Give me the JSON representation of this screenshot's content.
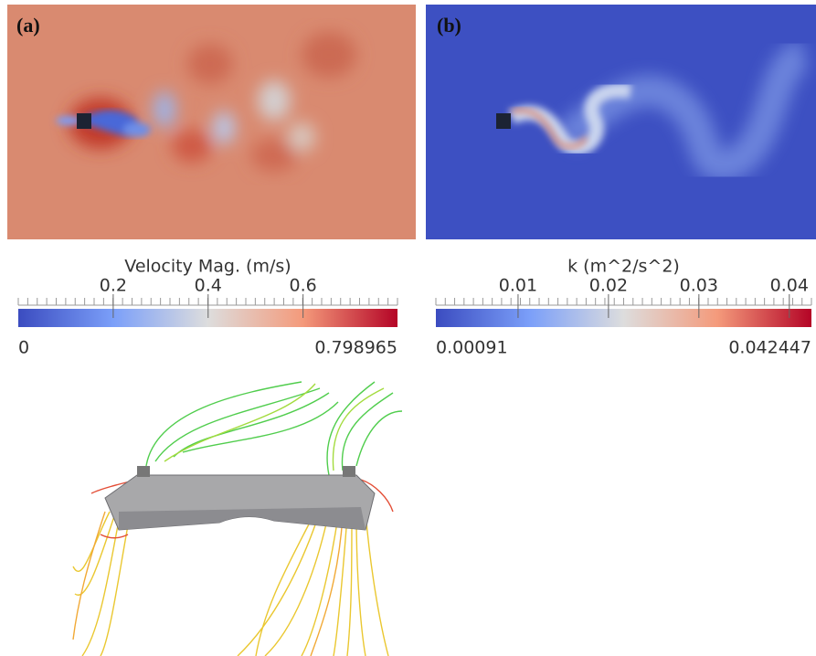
{
  "panels": [
    {
      "label": "(a)",
      "colorbar": {
        "title": "Velocity Mag. (m/s)",
        "min": 0,
        "max": 0.798965,
        "ticks": [
          0.2,
          0.4,
          0.6
        ]
      }
    },
    {
      "label": "(b)",
      "colorbar": {
        "title": "k (m^2/s^2)",
        "min": 0.00091,
        "max": 0.042447,
        "ticks": [
          0.01,
          0.02,
          0.03,
          0.04
        ]
      }
    }
  ]
}
